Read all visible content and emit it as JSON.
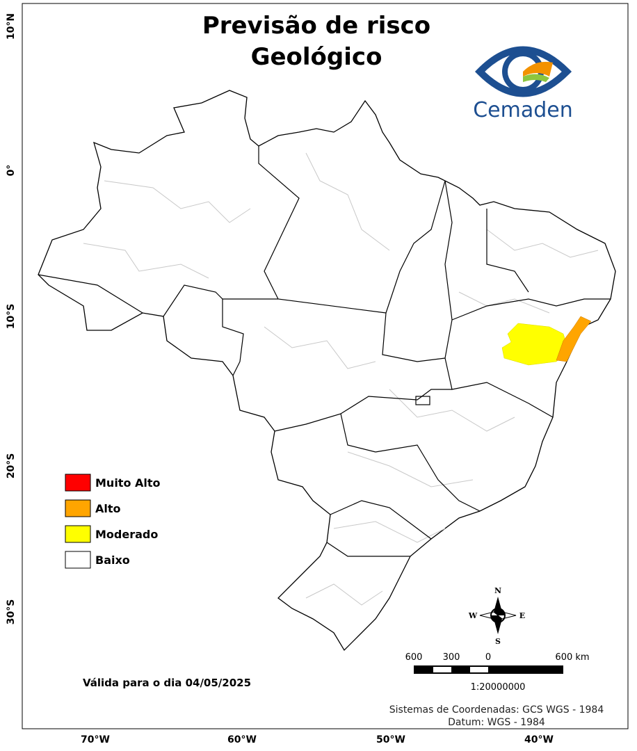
{
  "title": {
    "lines": [
      "Previsão de risco",
      "Geológico"
    ]
  },
  "logo": {
    "text": "Cemaden"
  },
  "legend": {
    "items": [
      {
        "label": "Muito Alto",
        "color": "#ff0000"
      },
      {
        "label": "Alto",
        "color": "#ffa500"
      },
      {
        "label": "Moderado",
        "color": "#ffff00"
      },
      {
        "label": "Baixo",
        "color": "#ffffff"
      }
    ]
  },
  "axes": {
    "left": [
      "10°N",
      "0°",
      "10°S",
      "20°S",
      "30°S"
    ],
    "bottom": [
      "70°W",
      "60°W",
      "50°W",
      "40°W"
    ]
  },
  "compass": {
    "n": "N",
    "s": "S",
    "w": "W",
    "e": "E"
  },
  "scale": {
    "labels": [
      "600",
      "300",
      "0",
      "600 km"
    ],
    "ratio": "1:20000000"
  },
  "validity": "Válida para o dia 04/05/2025",
  "footer": [
    "Sistemas de Coordenadas: GCS WGS - 1984",
    "Datum: WGS - 1984"
  ]
}
